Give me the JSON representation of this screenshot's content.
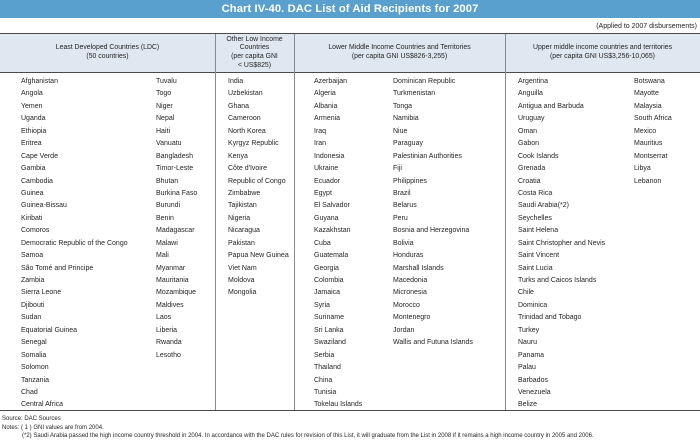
{
  "title": "Chart IV-40. DAC List of Aid Recipients for 2007",
  "applied": "(Applied to 2007 disbursements)",
  "headers": {
    "ldc": [
      "Least Developed Countries (LDC)",
      "(50 countries)"
    ],
    "oli": [
      "Other Low Income",
      "Countries",
      "(per capita GNI",
      "< US$825)"
    ],
    "lmi": [
      "Lower Middle Income Countries and Territories",
      "(per capita GNI US$826-3,255)"
    ],
    "umi": [
      "Upper middle income countries and territories",
      "(per capita GNI US$3,256-10,065)"
    ]
  },
  "ldc_col1": [
    "Afghanistan",
    "Angola",
    "Yemen",
    "Uganda",
    "Ethiopia",
    "Eritrea",
    "Cape Verde",
    "Gambia",
    "Cambodia",
    "Guinea",
    "Guinea-Bissau",
    "Kiribati",
    "Comoros",
    "Democratic Republic of the Congo",
    "Samoa",
    "São Tomé and Principe",
    "Zambia",
    "Sierra Leone",
    "Djibouti",
    "Sudan",
    "Equatorial Guinea",
    "Senegal",
    "Somalia",
    "Solomon",
    "Tanzania",
    "Chad",
    "Central Africa"
  ],
  "ldc_col2": [
    "Tuvalu",
    "Togo",
    "Niger",
    "Nepal",
    "Haiti",
    "Vanuatu",
    "Bangladesh",
    "Timor-Leste",
    "Bhutan",
    "Burkina Faso",
    "Burundi",
    "Benin",
    "Madagascar",
    "Malawi",
    "Mali",
    "Myanmar",
    "Mauritania",
    "Mozambique",
    "Maldives",
    "Laos",
    "Liberia",
    "Rwanda",
    "Lesotho"
  ],
  "oli": [
    "India",
    "Uzbekistan",
    "Ghana",
    "Cameroon",
    "North Korea",
    "Kyrgyz Republic",
    "Kenya",
    "Côte d'Ivoire",
    "Republic of Congo",
    "Zimbabwe",
    "Tajikistan",
    "Nigeria",
    "Nicaragua",
    "Pakistan",
    "Papua New Guinea",
    "Viet Nam",
    "Moldova",
    "Mongolia"
  ],
  "lmi_col1": [
    "Azerbaijan",
    "Algeria",
    "Albania",
    "Armenia",
    "Iraq",
    "Iran",
    "Indonesia",
    "Ukraine",
    "Ecuador",
    "Egypt",
    "El Salvador",
    "Guyana",
    "Kazakhstan",
    "Cuba",
    "Guatemala",
    "Georgia",
    "Colombia",
    "Jamaica",
    "Syria",
    "Suriname",
    "Sri Lanka",
    "Swaziland",
    "Serbia",
    "Thailand",
    "China",
    "Tunisia",
    "Tokelau Islands"
  ],
  "lmi_col2": [
    "Dominican Republic",
    "Turkmenistan",
    "Tonga",
    "Namibia",
    "Niue",
    "Paraguay",
    "Palestinian Authorities",
    "Fiji",
    "Philippines",
    "Brazil",
    "Belarus",
    "Peru",
    "Bosnia and Herzegovina",
    "Bolivia",
    "Honduras",
    "Marshall Islands",
    "Macedonia",
    "Micronesia",
    "Morocco",
    "Montenegro",
    "Jordan",
    "Wallis and Futuna Islands"
  ],
  "umi_col1": [
    "Argentina",
    "Anguilla",
    "Antigua and Barbuda",
    "Uruguay",
    "Oman",
    "Gabon",
    "Cook Islands",
    "Grenada",
    "Croatia",
    "Costa Rica",
    "Saudi Arabia(*2)",
    "Seychelles",
    "Saint Helena",
    "Saint Christopher and Nevis",
    "Saint Vincent",
    "Saint Lucia",
    "Turks and Caicos Islands",
    "Chile",
    "Dominica",
    "Trinidad and Tobago",
    "Turkey",
    "Nauru",
    "Panama",
    "Palau",
    "Barbados",
    "Venezuela",
    "Belize"
  ],
  "umi_col2": [
    "Botswana",
    "Mayotte",
    "Malaysia",
    "South Africa",
    "Mexico",
    "Mauritius",
    "Montserrat",
    "Libya",
    "Lebanon"
  ],
  "notes": [
    "Source: DAC Sources",
    "Notes: ( 1 ) GNI values are from 2004.",
    "(*2) Saudi Arabia passed the high income country threshold in 2004. In accordance with the DAC rules for revision of this List, it will graduate from the List in 2008 if it remains a high income country in 2005 and 2006."
  ]
}
